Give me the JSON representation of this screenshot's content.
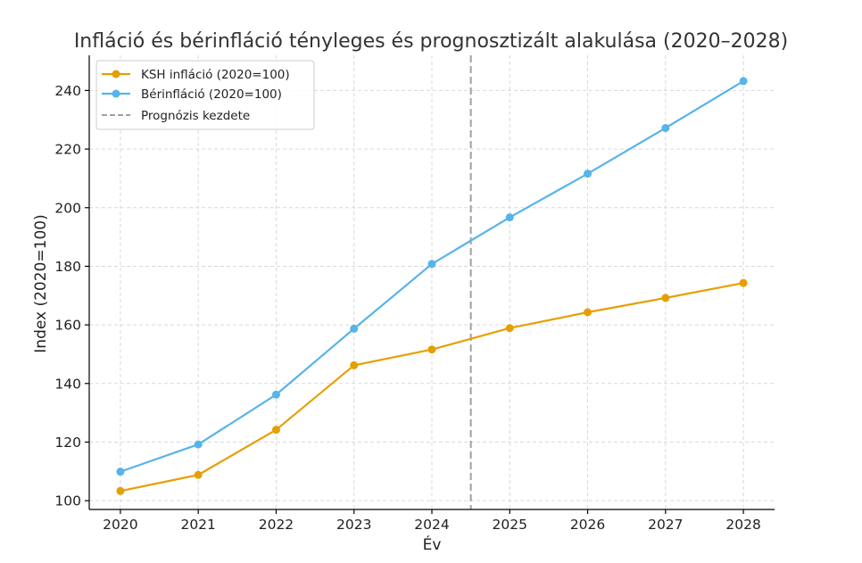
{
  "chart_data": {
    "type": "line",
    "title": "Infláció és bérinfláció tényleges és prognosztizált alakulása (2020–2028)",
    "xlabel": "Év",
    "ylabel": "Index (2020=100)",
    "x": [
      2020,
      2021,
      2022,
      2023,
      2024,
      2025,
      2026,
      2027,
      2028
    ],
    "xlim": [
      2019.6,
      2028.4
    ],
    "ylim": [
      97,
      252
    ],
    "yticks": [
      100,
      120,
      140,
      160,
      180,
      200,
      220,
      240
    ],
    "grid": true,
    "legend_position": "top-left",
    "series": [
      {
        "name": "KSH infláció (2020=100)",
        "color": "#E69F00",
        "values": [
          103.3,
          108.8,
          124.2,
          146.2,
          151.6,
          158.9,
          164.3,
          169.2,
          174.3
        ]
      },
      {
        "name": "Bérinfláció (2020=100)",
        "color": "#56B4E9",
        "values": [
          109.9,
          119.2,
          136.2,
          158.7,
          180.8,
          196.7,
          211.6,
          227.2,
          243.2
        ]
      }
    ],
    "reference_line": {
      "name": "Prognózis kezdete",
      "x": 2024.5,
      "color": "#a0a0a0"
    }
  }
}
